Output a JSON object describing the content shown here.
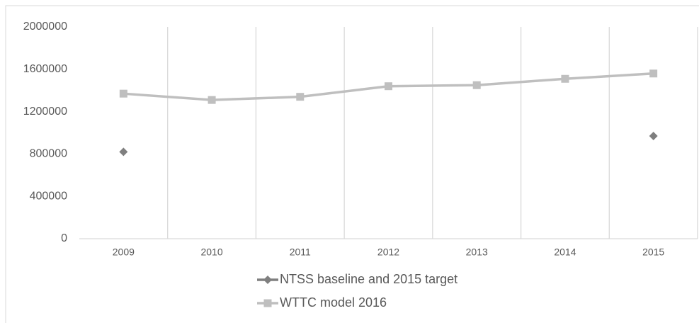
{
  "chart_data": {
    "type": "line",
    "categories": [
      "2009",
      "2010",
      "2011",
      "2012",
      "2013",
      "2014",
      "2015"
    ],
    "series": [
      {
        "name": "NTSS baseline and 2015 target",
        "color": "#7f7f7f",
        "marker": "diamond",
        "values": [
          820000,
          null,
          null,
          null,
          null,
          null,
          970000
        ]
      },
      {
        "name": "WTTC model 2016",
        "color": "#bfbfbf",
        "marker": "square",
        "values": [
          1370000,
          1310000,
          1340000,
          1440000,
          1450000,
          1510000,
          1560000
        ]
      }
    ],
    "ylim": [
      0,
      2000000
    ],
    "yticks": [
      0,
      400000,
      800000,
      1200000,
      1600000,
      2000000
    ],
    "grid": "x",
    "legend": "bottom"
  }
}
